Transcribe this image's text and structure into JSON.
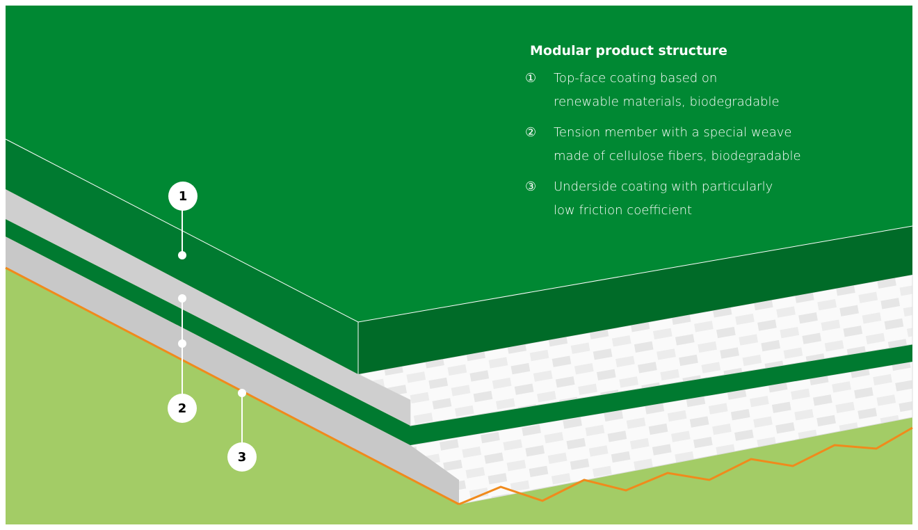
{
  "title": "Modular product structure",
  "items": [
    {
      "marker": "①",
      "lines": [
        "Top-face coating based on",
        "renewable materials, biodegradable"
      ]
    },
    {
      "marker": "②",
      "lines": [
        "Tension member with a special weave",
        "made of cellulose fibers, biodegradable"
      ]
    },
    {
      "marker": "③",
      "lines": [
        "Underside coating with particularly",
        "low friction coefficient"
      ]
    }
  ],
  "callouts": [
    "1",
    "2",
    "3"
  ]
}
